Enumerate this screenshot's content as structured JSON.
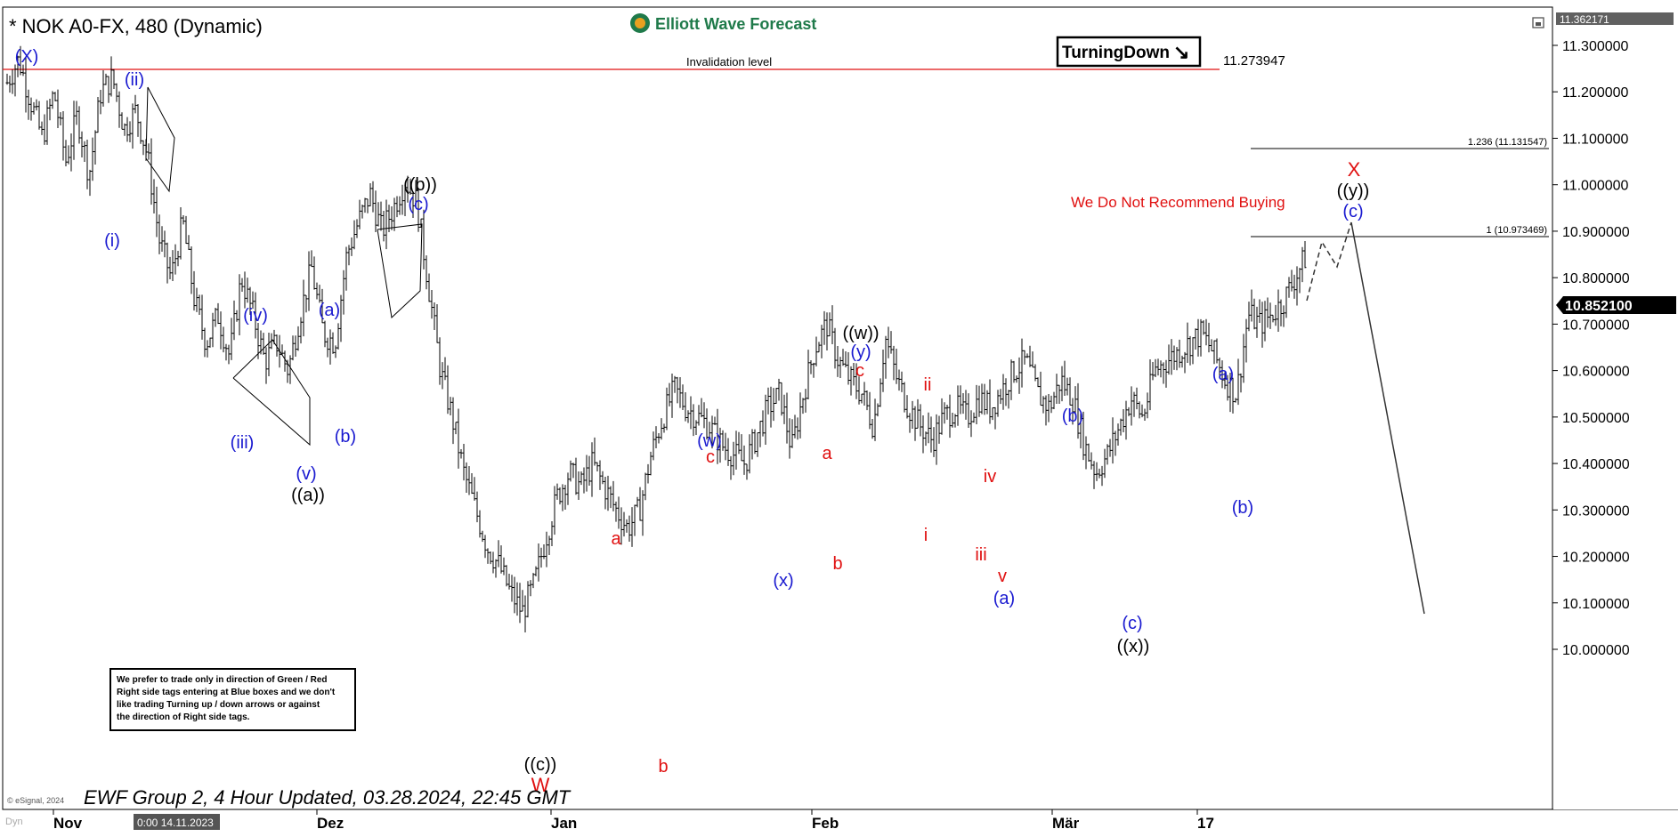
{
  "header": {
    "symbol_title": "* NOK A0-FX, 480 (Dynamic)",
    "logo_text": "Elliott Wave Forecast",
    "turning_badge": "TurningDown",
    "turning_arrow": "↘",
    "invalidation_label": "Invalidation level",
    "invalidation_value": "11.273947",
    "no_buy_note": "We Do Not Recommend Buying",
    "fib_1236_label": "1.236 (11.131547)",
    "fib_1_label": "1 (10.973469)"
  },
  "footer": {
    "esignal": "© eSignal, 2024",
    "dyn": "Dyn",
    "updated": "EWF Group 2, 4 Hour Updated, 03.28.2024, 22:45 GMT",
    "cursor_time": "0:00 14.11.2023"
  },
  "note_box": {
    "lines": [
      "We prefer to trade only in direction of Green / Red",
      "Right side tags entering at Blue boxes and we don't",
      "like trading Turning up / down arrows or against",
      "the direction of Right side tags."
    ]
  },
  "price_axis": {
    "top_value": "11.362171",
    "current_value": "10.852100",
    "ticks": [
      "11.300000",
      "11.200000",
      "11.100000",
      "11.000000",
      "10.900000",
      "10.800000",
      "10.700000",
      "10.600000",
      "10.500000",
      "10.400000",
      "10.300000",
      "10.200000",
      "10.100000",
      "10.000000"
    ]
  },
  "time_axis": {
    "labels": [
      "Nov",
      "Dez",
      "Jan",
      "Feb",
      "Mär",
      "17"
    ]
  },
  "colors": {
    "blue_label": "#1a1ad0",
    "red_label": "#e01010",
    "black_label": "#000000",
    "invalidation_line": "#e01010",
    "logo_green": "#1f7a4a"
  },
  "chart_data": {
    "type": "ohlc",
    "ylim": [
      9.95,
      11.37
    ],
    "x_labels": [
      "Nov",
      "Dez",
      "Jan",
      "Feb",
      "Mär",
      "17"
    ],
    "invalidation_level": 11.273947,
    "fib_levels": [
      {
        "label": "1.236 (11.131547)",
        "value": 11.131547
      },
      {
        "label": "1 (10.973469)",
        "value": 10.973469
      }
    ],
    "last_price": 10.8521,
    "price_path": [
      [
        0,
        11.22
      ],
      [
        1,
        11.27
      ],
      [
        2,
        11.18
      ],
      [
        3,
        11.1
      ],
      [
        4,
        11.2
      ],
      [
        5,
        11.05
      ],
      [
        6,
        11.15
      ],
      [
        7,
        11.02
      ],
      [
        8,
        11.2
      ],
      [
        9,
        11.23
      ],
      [
        10,
        11.12
      ],
      [
        11,
        11.16
      ],
      [
        12,
        11.06
      ],
      [
        13,
        10.88
      ],
      [
        14,
        10.8
      ],
      [
        15,
        10.92
      ],
      [
        16,
        10.75
      ],
      [
        17,
        10.66
      ],
      [
        18,
        10.72
      ],
      [
        19,
        10.63
      ],
      [
        20,
        10.8
      ],
      [
        21,
        10.72
      ],
      [
        22,
        10.62
      ],
      [
        23,
        10.66
      ],
      [
        24,
        10.6
      ],
      [
        25,
        10.72
      ],
      [
        26,
        10.82
      ],
      [
        27,
        10.68
      ],
      [
        28,
        10.66
      ],
      [
        29,
        10.85
      ],
      [
        30,
        10.92
      ],
      [
        31,
        10.98
      ],
      [
        32,
        10.9
      ],
      [
        33,
        10.95
      ],
      [
        34,
        11.01
      ],
      [
        35,
        10.96
      ],
      [
        36,
        10.78
      ],
      [
        37,
        10.6
      ],
      [
        38,
        10.5
      ],
      [
        39,
        10.38
      ],
      [
        40,
        10.3
      ],
      [
        41,
        10.22
      ],
      [
        42,
        10.18
      ],
      [
        43,
        10.12
      ],
      [
        44,
        10.08
      ],
      [
        45,
        10.14
      ],
      [
        46,
        10.24
      ],
      [
        47,
        10.33
      ],
      [
        48,
        10.38
      ],
      [
        49,
        10.35
      ],
      [
        50,
        10.4
      ],
      [
        51,
        10.35
      ],
      [
        52,
        10.3
      ],
      [
        53,
        10.26
      ],
      [
        54,
        10.3
      ],
      [
        55,
        10.42
      ],
      [
        56,
        10.5
      ],
      [
        57,
        10.56
      ],
      [
        58,
        10.52
      ],
      [
        59,
        10.5
      ],
      [
        60,
        10.48
      ],
      [
        61,
        10.44
      ],
      [
        62,
        10.42
      ],
      [
        63,
        10.4
      ],
      [
        64,
        10.46
      ],
      [
        65,
        10.52
      ],
      [
        66,
        10.55
      ],
      [
        67,
        10.43
      ],
      [
        68,
        10.55
      ],
      [
        69,
        10.65
      ],
      [
        70,
        10.7
      ],
      [
        71,
        10.62
      ],
      [
        72,
        10.58
      ],
      [
        73,
        10.55
      ],
      [
        74,
        10.48
      ],
      [
        75,
        10.67
      ],
      [
        76,
        10.58
      ],
      [
        77,
        10.52
      ],
      [
        78,
        10.48
      ],
      [
        79,
        10.45
      ],
      [
        80,
        10.5
      ],
      [
        81,
        10.52
      ],
      [
        82,
        10.5
      ],
      [
        83,
        10.54
      ],
      [
        84,
        10.52
      ],
      [
        85,
        10.56
      ],
      [
        86,
        10.6
      ],
      [
        87,
        10.62
      ],
      [
        88,
        10.55
      ],
      [
        89,
        10.52
      ],
      [
        90,
        10.58
      ],
      [
        91,
        10.54
      ],
      [
        92,
        10.44
      ],
      [
        93,
        10.38
      ],
      [
        94,
        10.42
      ],
      [
        95,
        10.48
      ],
      [
        96,
        10.54
      ],
      [
        97,
        10.5
      ],
      [
        98,
        10.6
      ],
      [
        99,
        10.62
      ],
      [
        100,
        10.64
      ],
      [
        101,
        10.66
      ],
      [
        102,
        10.68
      ],
      [
        103,
        10.64
      ],
      [
        104,
        10.58
      ],
      [
        105,
        10.55
      ],
      [
        106,
        10.72
      ],
      [
        107,
        10.7
      ],
      [
        108,
        10.72
      ],
      [
        109,
        10.75
      ],
      [
        110,
        10.8
      ],
      [
        111,
        10.85
      ]
    ]
  },
  "wave_labels": [
    {
      "text": "(X)",
      "color": "blue"
    },
    {
      "text": "(ii)",
      "color": "blue"
    },
    {
      "text": "(i)",
      "color": "blue"
    },
    {
      "text": "((b))",
      "color": "black"
    },
    {
      "text": "(c)",
      "color": "blue"
    },
    {
      "text": "(iv)",
      "color": "blue"
    },
    {
      "text": "(a)",
      "color": "blue"
    },
    {
      "text": "(iii)",
      "color": "blue"
    },
    {
      "text": "(b)",
      "color": "blue"
    },
    {
      "text": "(v)",
      "color": "blue"
    },
    {
      "text": "((a))",
      "color": "black"
    },
    {
      "text": "((c))",
      "color": "black"
    },
    {
      "text": "W",
      "color": "red"
    },
    {
      "text": "a",
      "color": "red"
    },
    {
      "text": "b",
      "color": "red"
    },
    {
      "text": "(w)",
      "color": "blue"
    },
    {
      "text": "c",
      "color": "red"
    },
    {
      "text": "(x)",
      "color": "blue"
    },
    {
      "text": "a",
      "color": "red"
    },
    {
      "text": "b",
      "color": "red"
    },
    {
      "text": "((w))",
      "color": "black"
    },
    {
      "text": "(y)",
      "color": "blue"
    },
    {
      "text": "c",
      "color": "red"
    },
    {
      "text": "ii",
      "color": "red"
    },
    {
      "text": "i",
      "color": "red"
    },
    {
      "text": "iv",
      "color": "red"
    },
    {
      "text": "iii",
      "color": "red"
    },
    {
      "text": "v",
      "color": "red"
    },
    {
      "text": "(a)",
      "color": "blue"
    },
    {
      "text": "(b)",
      "color": "blue"
    },
    {
      "text": "(c)",
      "color": "blue"
    },
    {
      "text": "((x))",
      "color": "black"
    },
    {
      "text": "(a)",
      "color": "blue"
    },
    {
      "text": "(b)",
      "color": "blue"
    },
    {
      "text": "X",
      "color": "red"
    },
    {
      "text": "((y))",
      "color": "black"
    },
    {
      "text": "(c)",
      "color": "blue"
    }
  ]
}
